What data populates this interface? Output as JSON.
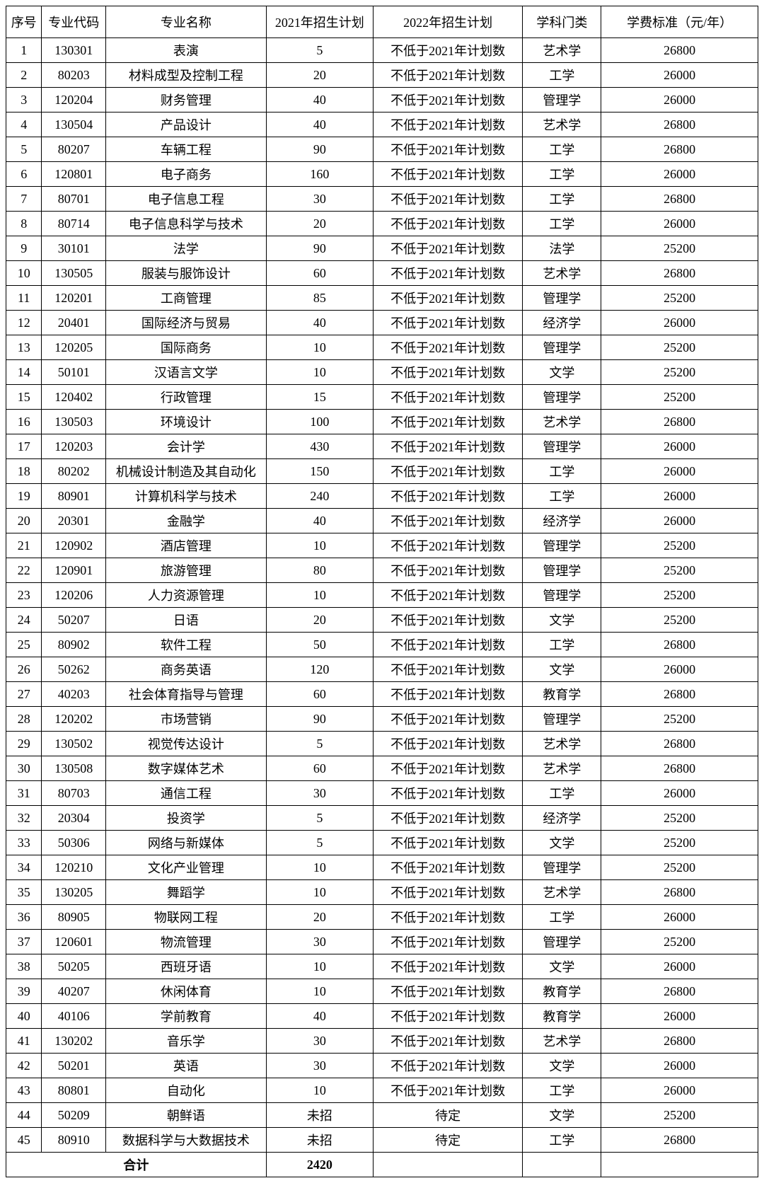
{
  "columns": [
    "序号",
    "专业代码",
    "专业名称",
    "2021年招生计划",
    "2022年招生计划",
    "学科门类",
    "学费标准（元/年）"
  ],
  "rows": [
    [
      "1",
      "130301",
      "表演",
      "5",
      "不低于2021年计划数",
      "艺术学",
      "26800"
    ],
    [
      "2",
      "80203",
      "材料成型及控制工程",
      "20",
      "不低于2021年计划数",
      "工学",
      "26000"
    ],
    [
      "3",
      "120204",
      "财务管理",
      "40",
      "不低于2021年计划数",
      "管理学",
      "26000"
    ],
    [
      "4",
      "130504",
      "产品设计",
      "40",
      "不低于2021年计划数",
      "艺术学",
      "26800"
    ],
    [
      "5",
      "80207",
      "车辆工程",
      "90",
      "不低于2021年计划数",
      "工学",
      "26800"
    ],
    [
      "6",
      "120801",
      "电子商务",
      "160",
      "不低于2021年计划数",
      "工学",
      "26000"
    ],
    [
      "7",
      "80701",
      "电子信息工程",
      "30",
      "不低于2021年计划数",
      "工学",
      "26800"
    ],
    [
      "8",
      "80714",
      "电子信息科学与技术",
      "20",
      "不低于2021年计划数",
      "工学",
      "26000"
    ],
    [
      "9",
      "30101",
      "法学",
      "90",
      "不低于2021年计划数",
      "法学",
      "25200"
    ],
    [
      "10",
      "130505",
      "服装与服饰设计",
      "60",
      "不低于2021年计划数",
      "艺术学",
      "26800"
    ],
    [
      "11",
      "120201",
      "工商管理",
      "85",
      "不低于2021年计划数",
      "管理学",
      "25200"
    ],
    [
      "12",
      "20401",
      "国际经济与贸易",
      "40",
      "不低于2021年计划数",
      "经济学",
      "26000"
    ],
    [
      "13",
      "120205",
      "国际商务",
      "10",
      "不低于2021年计划数",
      "管理学",
      "25200"
    ],
    [
      "14",
      "50101",
      "汉语言文学",
      "10",
      "不低于2021年计划数",
      "文学",
      "25200"
    ],
    [
      "15",
      "120402",
      "行政管理",
      "15",
      "不低于2021年计划数",
      "管理学",
      "25200"
    ],
    [
      "16",
      "130503",
      "环境设计",
      "100",
      "不低于2021年计划数",
      "艺术学",
      "26800"
    ],
    [
      "17",
      "120203",
      "会计学",
      "430",
      "不低于2021年计划数",
      "管理学",
      "26000"
    ],
    [
      "18",
      "80202",
      "机械设计制造及其自动化",
      "150",
      "不低于2021年计划数",
      "工学",
      "26000"
    ],
    [
      "19",
      "80901",
      "计算机科学与技术",
      "240",
      "不低于2021年计划数",
      "工学",
      "26000"
    ],
    [
      "20",
      "20301",
      "金融学",
      "40",
      "不低于2021年计划数",
      "经济学",
      "26000"
    ],
    [
      "21",
      "120902",
      "酒店管理",
      "10",
      "不低于2021年计划数",
      "管理学",
      "25200"
    ],
    [
      "22",
      "120901",
      "旅游管理",
      "80",
      "不低于2021年计划数",
      "管理学",
      "25200"
    ],
    [
      "23",
      "120206",
      "人力资源管理",
      "10",
      "不低于2021年计划数",
      "管理学",
      "25200"
    ],
    [
      "24",
      "50207",
      "日语",
      "20",
      "不低于2021年计划数",
      "文学",
      "25200"
    ],
    [
      "25",
      "80902",
      "软件工程",
      "50",
      "不低于2021年计划数",
      "工学",
      "26800"
    ],
    [
      "26",
      "50262",
      "商务英语",
      "120",
      "不低于2021年计划数",
      "文学",
      "26000"
    ],
    [
      "27",
      "40203",
      "社会体育指导与管理",
      "60",
      "不低于2021年计划数",
      "教育学",
      "26800"
    ],
    [
      "28",
      "120202",
      "市场营销",
      "90",
      "不低于2021年计划数",
      "管理学",
      "25200"
    ],
    [
      "29",
      "130502",
      "视觉传达设计",
      "5",
      "不低于2021年计划数",
      "艺术学",
      "26800"
    ],
    [
      "30",
      "130508",
      "数字媒体艺术",
      "60",
      "不低于2021年计划数",
      "艺术学",
      "26800"
    ],
    [
      "31",
      "80703",
      "通信工程",
      "30",
      "不低于2021年计划数",
      "工学",
      "26000"
    ],
    [
      "32",
      "20304",
      "投资学",
      "5",
      "不低于2021年计划数",
      "经济学",
      "25200"
    ],
    [
      "33",
      "50306",
      "网络与新媒体",
      "5",
      "不低于2021年计划数",
      "文学",
      "25200"
    ],
    [
      "34",
      "120210",
      "文化产业管理",
      "10",
      "不低于2021年计划数",
      "管理学",
      "25200"
    ],
    [
      "35",
      "130205",
      "舞蹈学",
      "10",
      "不低于2021年计划数",
      "艺术学",
      "26800"
    ],
    [
      "36",
      "80905",
      "物联网工程",
      "20",
      "不低于2021年计划数",
      "工学",
      "26000"
    ],
    [
      "37",
      "120601",
      "物流管理",
      "30",
      "不低于2021年计划数",
      "管理学",
      "25200"
    ],
    [
      "38",
      "50205",
      "西班牙语",
      "10",
      "不低于2021年计划数",
      "文学",
      "26000"
    ],
    [
      "39",
      "40207",
      "休闲体育",
      "10",
      "不低于2021年计划数",
      "教育学",
      "26800"
    ],
    [
      "40",
      "40106",
      "学前教育",
      "40",
      "不低于2021年计划数",
      "教育学",
      "26000"
    ],
    [
      "41",
      "130202",
      "音乐学",
      "30",
      "不低于2021年计划数",
      "艺术学",
      "26800"
    ],
    [
      "42",
      "50201",
      "英语",
      "30",
      "不低于2021年计划数",
      "文学",
      "26000"
    ],
    [
      "43",
      "80801",
      "自动化",
      "10",
      "不低于2021年计划数",
      "工学",
      "26000"
    ],
    [
      "44",
      "50209",
      "朝鲜语",
      "未招",
      "待定",
      "文学",
      "25200"
    ],
    [
      "45",
      "80910",
      "数据科学与大数据技术",
      "未招",
      "待定",
      "工学",
      "26800"
    ]
  ],
  "total_label": "合计",
  "total_value": "2420"
}
